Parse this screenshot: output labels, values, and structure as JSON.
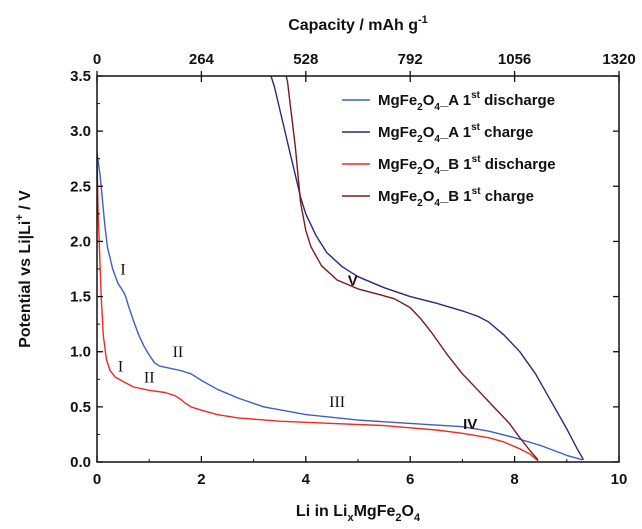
{
  "chart_data": {
    "type": "line",
    "xlabel": "Li in Li_x MgFe_2O_4",
    "xlabel_parts": {
      "p1": "Li in Li",
      "s1": "x",
      "p2": "MgFe",
      "s2": "2",
      "p3": "O",
      "s3": "4"
    },
    "ylabel": "Potential vs Li|Li+ / V",
    "ylabel_parts": {
      "p1": "Potential vs Li|Li",
      "sup": "+",
      "p2": " / V"
    },
    "x2label": "Capacity / mAh g-1",
    "x2label_parts": {
      "p1": "Capacity / mAh g",
      "sup": "-1"
    },
    "xlim": [
      0,
      10
    ],
    "ylim": [
      0,
      3.5
    ],
    "x2lim": [
      0,
      1320
    ],
    "x_ticks": [
      0,
      2,
      4,
      6,
      8,
      10
    ],
    "x_tick_labels": [
      "0",
      "2",
      "4",
      "6",
      "8",
      "10"
    ],
    "y_ticks": [
      0,
      0.5,
      1.0,
      1.5,
      2.0,
      2.5,
      3.0,
      3.5
    ],
    "y_tick_labels": [
      "0.0",
      "0.5",
      "1.0",
      "1.5",
      "2.0",
      "2.5",
      "3.0",
      "3.5"
    ],
    "x2_ticks": [
      0,
      264,
      528,
      792,
      1056,
      1320
    ],
    "x2_tick_labels": [
      "0",
      "264",
      "528",
      "792",
      "1056",
      "1320"
    ],
    "grid": false,
    "legend_position": "top-right",
    "series": [
      {
        "name": "MgFe2O4_A 1st discharge",
        "label": {
          "p1": "MgFe",
          "s1": "2",
          "p2": "O",
          "s2": "4",
          "p3": "_A 1",
          "sup": "st",
          "p4": " discharge"
        },
        "color": "#3b5fc4",
        "x": [
          0.0,
          0.03,
          0.06,
          0.1,
          0.15,
          0.2,
          0.3,
          0.4,
          0.5,
          0.55,
          0.6,
          0.7,
          0.8,
          0.9,
          1.0,
          1.1,
          1.2,
          1.4,
          1.6,
          1.8,
          2.0,
          2.3,
          2.7,
          3.2,
          4.0,
          5.0,
          6.0,
          7.0,
          7.5,
          8.0,
          8.5,
          9.0,
          9.3
        ],
        "y": [
          2.8,
          2.7,
          2.6,
          2.4,
          2.15,
          1.95,
          1.75,
          1.62,
          1.55,
          1.5,
          1.42,
          1.28,
          1.15,
          1.05,
          0.97,
          0.9,
          0.87,
          0.85,
          0.83,
          0.8,
          0.74,
          0.66,
          0.58,
          0.5,
          0.43,
          0.38,
          0.35,
          0.32,
          0.28,
          0.22,
          0.15,
          0.06,
          0.02
        ]
      },
      {
        "name": "MgFe2O4_A 1st charge",
        "label": {
          "p1": "MgFe",
          "s1": "2",
          "p2": "O",
          "s2": "4",
          "p3": "_A 1",
          "sup": "st",
          "p4": " charge"
        },
        "color": "#2a2a7a",
        "x": [
          9.32,
          9.2,
          9.0,
          8.7,
          8.4,
          8.1,
          7.8,
          7.5,
          7.3,
          7.0,
          6.5,
          6.0,
          5.5,
          5.0,
          4.7,
          4.4,
          4.2,
          4.0,
          3.9,
          3.8,
          3.7,
          3.6,
          3.5,
          3.4,
          3.3
        ],
        "y": [
          0.02,
          0.12,
          0.3,
          0.55,
          0.8,
          1.0,
          1.15,
          1.27,
          1.32,
          1.37,
          1.44,
          1.5,
          1.58,
          1.68,
          1.77,
          1.9,
          2.05,
          2.25,
          2.4,
          2.6,
          2.8,
          3.0,
          3.2,
          3.4,
          3.55
        ]
      },
      {
        "name": "MgFe2O4_B 1st discharge",
        "label": {
          "p1": "MgFe",
          "s1": "2",
          "p2": "O",
          "s2": "4",
          "p3": "_B 1",
          "sup": "st",
          "p4": " discharge"
        },
        "color": "#ee2a22",
        "x": [
          0.0,
          0.02,
          0.05,
          0.08,
          0.12,
          0.18,
          0.25,
          0.35,
          0.5,
          0.7,
          1.0,
          1.3,
          1.5,
          1.6,
          1.7,
          1.8,
          2.0,
          2.3,
          2.7,
          3.5,
          4.5,
          5.5,
          6.0,
          6.5,
          7.0,
          7.5,
          7.8,
          8.1,
          8.3,
          8.4,
          8.45
        ],
        "y": [
          2.8,
          2.3,
          1.9,
          1.5,
          1.15,
          0.93,
          0.83,
          0.77,
          0.73,
          0.68,
          0.65,
          0.63,
          0.6,
          0.57,
          0.53,
          0.5,
          0.47,
          0.43,
          0.4,
          0.37,
          0.35,
          0.33,
          0.31,
          0.29,
          0.26,
          0.22,
          0.18,
          0.12,
          0.07,
          0.03,
          0.01
        ]
      },
      {
        "name": "MgFe2O4_B 1st charge",
        "label": {
          "p1": "MgFe",
          "s1": "2",
          "p2": "O",
          "s2": "4",
          "p3": "_B 1",
          "sup": "st",
          "p4": " charge"
        },
        "color": "#7a1a1a",
        "x": [
          8.45,
          8.3,
          8.1,
          7.9,
          7.6,
          7.3,
          7.0,
          6.7,
          6.4,
          6.2,
          6.0,
          5.7,
          5.4,
          5.0,
          4.6,
          4.3,
          4.1,
          4.0,
          3.9,
          3.85,
          3.8,
          3.75,
          3.7,
          3.65,
          3.6
        ],
        "y": [
          0.02,
          0.1,
          0.22,
          0.35,
          0.5,
          0.65,
          0.8,
          0.98,
          1.18,
          1.3,
          1.4,
          1.48,
          1.52,
          1.57,
          1.65,
          1.78,
          1.95,
          2.1,
          2.35,
          2.6,
          2.85,
          3.05,
          3.25,
          3.45,
          3.55
        ]
      }
    ],
    "annotations": [
      {
        "text": "I",
        "x": 0.5,
        "y": 1.7,
        "style": "serif"
      },
      {
        "text": "II",
        "x": 1.55,
        "y": 0.95,
        "style": "serif"
      },
      {
        "text": "I",
        "x": 0.45,
        "y": 0.82,
        "style": "serif"
      },
      {
        "text": "II",
        "x": 1.0,
        "y": 0.72,
        "style": "serif"
      },
      {
        "text": "III",
        "x": 4.6,
        "y": 0.5,
        "style": "serif"
      },
      {
        "text": "V",
        "x": 4.9,
        "y": 1.6,
        "style": "bold"
      },
      {
        "text": "IV",
        "x": 7.15,
        "y": 0.3,
        "style": "bold"
      }
    ]
  }
}
